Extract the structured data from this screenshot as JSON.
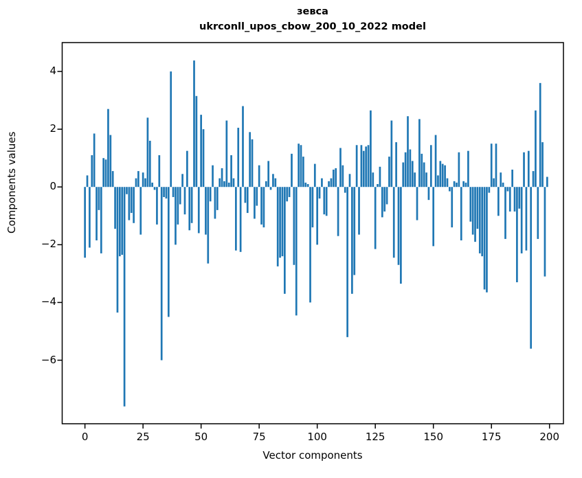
{
  "chart_data": {
    "type": "bar",
    "title": "зевса",
    "subtitle": "ukrconll_upos_cbow_200_10_2022 model",
    "xlabel": "Vector components",
    "ylabel": "Components values",
    "x_ticks": [
      0,
      25,
      50,
      75,
      100,
      125,
      150,
      175,
      200
    ],
    "y_ticks": [
      4,
      2,
      0,
      -2,
      -4,
      -6
    ],
    "xlim": [
      -9.8,
      206
    ],
    "ylim": [
      -8.2,
      5.0
    ],
    "grid": false,
    "legend": "none",
    "bar_color": "#1f77b4",
    "axis_color": "#000000",
    "background_color": "#ffffff",
    "n_components": 200,
    "values": [
      -2.45,
      0.4,
      -2.1,
      1.1,
      1.85,
      -1.85,
      -0.8,
      -2.3,
      1.0,
      0.95,
      2.7,
      1.8,
      0.55,
      -1.45,
      -4.35,
      -2.4,
      -2.35,
      -7.6,
      -0.25,
      -1.15,
      -0.9,
      -1.25,
      0.3,
      0.55,
      -1.65,
      0.5,
      0.3,
      2.4,
      1.6,
      0.15,
      -0.1,
      -1.3,
      1.1,
      -6.0,
      -0.35,
      -0.4,
      -4.5,
      4.0,
      -0.35,
      -2.0,
      -1.3,
      -0.6,
      0.45,
      -0.95,
      1.25,
      -1.5,
      -1.25,
      4.38,
      3.15,
      -1.6,
      2.5,
      2.0,
      -1.65,
      -2.65,
      -0.5,
      0.75,
      -1.1,
      -0.8,
      0.3,
      0.65,
      0.2,
      2.3,
      0.15,
      1.1,
      0.3,
      -2.2,
      2.05,
      -2.25,
      2.8,
      -0.55,
      -0.9,
      1.9,
      1.65,
      -1.1,
      -0.65,
      0.75,
      -1.3,
      -1.4,
      0.2,
      0.9,
      -0.1,
      0.45,
      0.3,
      -2.75,
      -2.45,
      -2.4,
      -3.7,
      -0.5,
      -0.35,
      1.15,
      -2.7,
      -4.45,
      1.5,
      1.45,
      1.05,
      0.15,
      0.1,
      -4.0,
      -1.4,
      0.8,
      -2.0,
      -0.4,
      0.3,
      -0.95,
      -1.0,
      0.2,
      0.3,
      0.6,
      0.65,
      -1.7,
      1.35,
      0.75,
      -0.2,
      -5.2,
      0.45,
      -3.7,
      -3.05,
      1.45,
      -1.65,
      1.45,
      1.25,
      1.4,
      1.45,
      2.65,
      0.5,
      -2.15,
      0.1,
      0.7,
      -1.05,
      -0.85,
      -0.6,
      1.05,
      2.3,
      -2.45,
      1.55,
      -2.7,
      -3.35,
      0.85,
      1.2,
      2.45,
      1.3,
      0.9,
      0.5,
      -1.15,
      2.35,
      1.15,
      0.85,
      0.5,
      -0.45,
      1.45,
      -2.05,
      1.8,
      0.4,
      0.9,
      0.8,
      0.75,
      0.3,
      -0.15,
      -1.4,
      0.2,
      0.15,
      1.2,
      -1.85,
      0.2,
      0.15,
      1.25,
      -1.2,
      -1.65,
      -1.9,
      -1.45,
      -2.3,
      -2.4,
      -3.55,
      -3.65,
      -0.2,
      1.5,
      0.3,
      1.5,
      -1.0,
      0.5,
      0.15,
      -1.8,
      -0.15,
      -0.85,
      0.6,
      -0.85,
      -3.3,
      -0.75,
      -2.3,
      1.2,
      -2.2,
      1.25,
      -5.6,
      0.55,
      2.65,
      -1.8,
      3.6,
      1.55,
      -3.1,
      0.35
    ]
  }
}
